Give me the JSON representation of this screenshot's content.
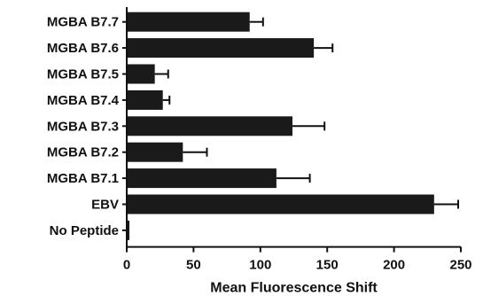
{
  "chart_data": {
    "type": "bar",
    "orientation": "horizontal",
    "categories": [
      "MGBA B7.7",
      "MGBA B7.6",
      "MGBA B7.5",
      "MGBA B7.4",
      "MGBA B7.3",
      "MGBA B7.2",
      "MGBA B7.1",
      "EBV",
      "No Peptide"
    ],
    "values": [
      92,
      140,
      21,
      27,
      124,
      42,
      112,
      230,
      2
    ],
    "errors": [
      10,
      14,
      10,
      5,
      24,
      18,
      25,
      18,
      0
    ],
    "title": "",
    "xlabel": "Mean Fluorescence Shift",
    "ylabel": "",
    "xlim": [
      0,
      250
    ],
    "xticks": [
      "0",
      "50",
      "100",
      "150",
      "200",
      "250"
    ],
    "grid": false,
    "legend": "none",
    "bar_color": "#1a1a1a"
  }
}
